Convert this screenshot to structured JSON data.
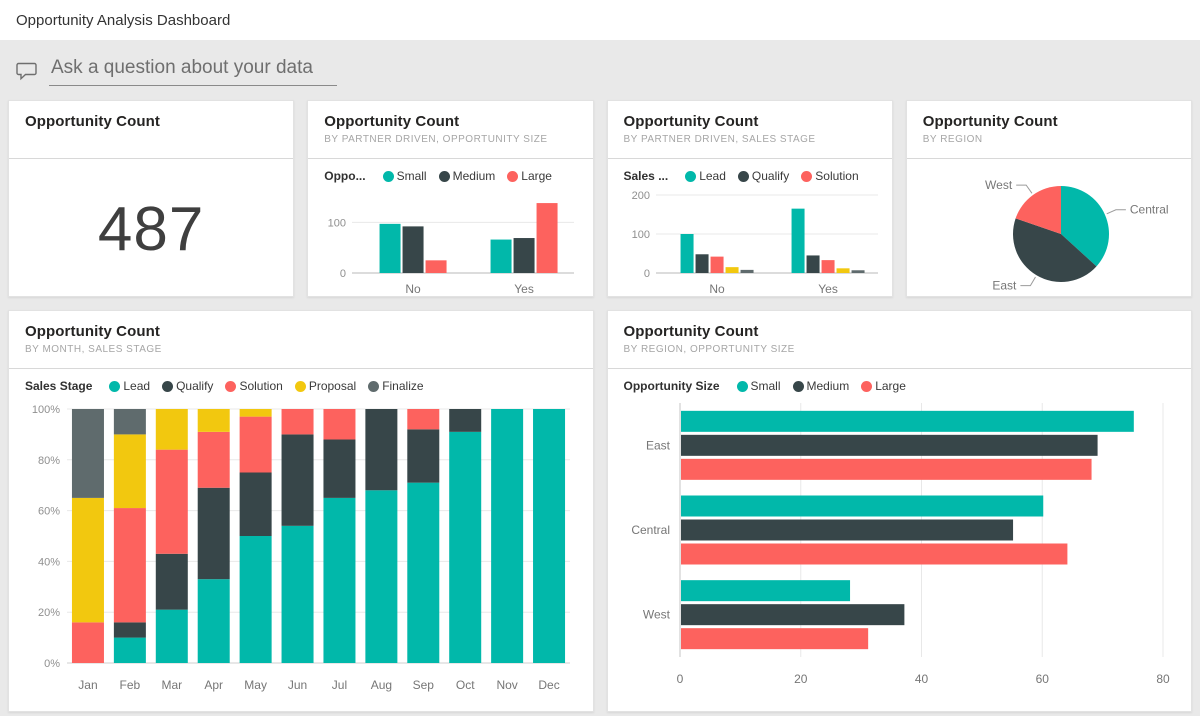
{
  "page": {
    "title": "Opportunity Analysis Dashboard"
  },
  "qna": {
    "placeholder": "Ask a question about your data"
  },
  "palette": {
    "teal": "#01B8AA",
    "charcoal": "#374649",
    "coral": "#FD625E",
    "yellow": "#F2C80F",
    "slate": "#5F6B6D",
    "axis_text": "#8f8f8f",
    "grid_line": "#e8e8e8",
    "base_line": "#b9b9b9"
  },
  "tiles": [
    {
      "title": "Opportunity Count",
      "subtitle": "",
      "value": "487"
    },
    {
      "title": "Opportunity Count",
      "subtitle": "BY PARTNER DRIVEN, OPPORTUNITY SIZE",
      "legend_title": "Oppo..."
    },
    {
      "title": "Opportunity Count",
      "subtitle": "BY PARTNER DRIVEN, SALES STAGE",
      "legend_title": "Sales ..."
    },
    {
      "title": "Opportunity Count",
      "subtitle": "BY REGION"
    },
    {
      "title": "Opportunity Count",
      "subtitle": "BY MONTH, SALES STAGE",
      "legend_title": "Sales Stage"
    },
    {
      "title": "Opportunity Count",
      "subtitle": "BY REGION, OPPORTUNITY SIZE",
      "legend_title": "Opportunity Size"
    }
  ],
  "chart_data": [
    {
      "type": "bar",
      "title": "Opportunity Count by Partner Driven, Opportunity Size",
      "categories": [
        "No",
        "Yes"
      ],
      "series": [
        {
          "name": "Small",
          "color": "teal",
          "values": [
            97,
            66
          ]
        },
        {
          "name": "Medium",
          "color": "charcoal",
          "values": [
            92,
            69
          ]
        },
        {
          "name": "Large",
          "color": "coral",
          "values": [
            25,
            138
          ]
        }
      ],
      "yticks": [
        0,
        100
      ],
      "ylim": [
        0,
        150
      ],
      "legend_max_items": 3
    },
    {
      "type": "bar",
      "title": "Opportunity Count by Partner Driven, Sales Stage",
      "categories": [
        "No",
        "Yes"
      ],
      "series": [
        {
          "name": "Lead",
          "color": "teal",
          "values": [
            100,
            165
          ]
        },
        {
          "name": "Qualify",
          "color": "charcoal",
          "values": [
            48,
            45
          ]
        },
        {
          "name": "Solution",
          "color": "coral",
          "values": [
            42,
            33
          ]
        },
        {
          "name": "Proposal",
          "color": "yellow",
          "values": [
            15,
            12
          ]
        },
        {
          "name": "Finalize",
          "color": "slate",
          "values": [
            8,
            7
          ]
        }
      ],
      "yticks": [
        0,
        100,
        200
      ],
      "ylim": [
        0,
        200
      ],
      "legend_max_items": 3
    },
    {
      "type": "pie",
      "title": "Opportunity Count by Region",
      "labels": [
        "Central",
        "East",
        "West"
      ],
      "values": [
        179,
        212,
        96
      ],
      "colors": [
        "teal",
        "charcoal",
        "coral"
      ]
    },
    {
      "type": "stacked-bar-100",
      "title": "Opportunity Count by Month, Sales Stage",
      "categories": [
        "Jan",
        "Feb",
        "Mar",
        "Apr",
        "May",
        "Jun",
        "Jul",
        "Aug",
        "Sep",
        "Oct",
        "Nov",
        "Dec"
      ],
      "series": [
        {
          "name": "Lead",
          "color": "teal",
          "values": [
            0,
            10,
            21,
            33,
            50,
            54,
            65,
            68,
            71,
            91,
            100,
            100
          ]
        },
        {
          "name": "Qualify",
          "color": "charcoal",
          "values": [
            0,
            6,
            22,
            36,
            25,
            36,
            23,
            32,
            21,
            9,
            0,
            0
          ]
        },
        {
          "name": "Solution",
          "color": "coral",
          "values": [
            16,
            45,
            41,
            22,
            22,
            10,
            12,
            0,
            8,
            0,
            0,
            0
          ]
        },
        {
          "name": "Proposal",
          "color": "yellow",
          "values": [
            49,
            29,
            16,
            9,
            3,
            0,
            0,
            0,
            0,
            0,
            0,
            0
          ]
        },
        {
          "name": "Finalize",
          "color": "slate",
          "values": [
            35,
            10,
            0,
            0,
            0,
            0,
            0,
            0,
            0,
            0,
            0,
            0
          ]
        }
      ],
      "yticks": [
        "0%",
        "20%",
        "40%",
        "60%",
        "80%",
        "100%"
      ]
    },
    {
      "type": "bar-horizontal",
      "title": "Opportunity Count by Region, Opportunity Size",
      "categories": [
        "East",
        "Central",
        "West"
      ],
      "series": [
        {
          "name": "Small",
          "color": "teal",
          "values": [
            75,
            60,
            28
          ]
        },
        {
          "name": "Medium",
          "color": "charcoal",
          "values": [
            69,
            55,
            37
          ]
        },
        {
          "name": "Large",
          "color": "coral",
          "values": [
            68,
            64,
            31
          ]
        }
      ],
      "xticks": [
        0,
        20,
        40,
        60,
        80
      ],
      "xlim": [
        0,
        80
      ]
    }
  ]
}
